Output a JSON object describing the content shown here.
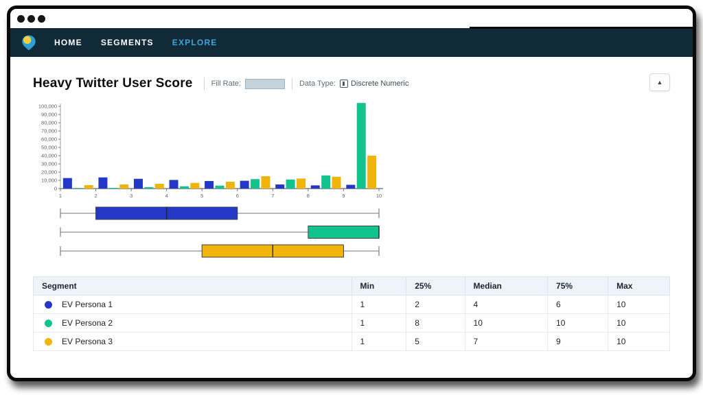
{
  "window": {
    "control_dot_count": 3
  },
  "navbar": {
    "items": [
      {
        "label": "HOME",
        "active": false
      },
      {
        "label": "SEGMENTS",
        "active": false
      },
      {
        "label": "EXPLORE",
        "active": true
      }
    ]
  },
  "panel": {
    "title": "Heavy Twitter User Score",
    "fill_rate_label": "Fill Rate:",
    "fill_rate_value": "",
    "data_type_label": "Data Type:",
    "data_type_value": "Discrete Numeric",
    "collapse_icon_glyph": "▲"
  },
  "colors": {
    "navbar_bg": "#112a37",
    "nav_active": "#3fa5dc",
    "series_blue": "#2438c8",
    "series_green": "#13c38d",
    "series_yellow": "#f0b40a",
    "table_header_bg": "#eef4fa",
    "logo_yellow": "#f6cf3a",
    "logo_blue": "#2d9ed6",
    "axis_gray": "#9aa0a6"
  },
  "chart_data": [
    {
      "type": "bar",
      "title": "Heavy Twitter User Score — histogram of segment counts per score bin",
      "xlabel": "",
      "ylabel": "",
      "xlim": [
        1,
        10
      ],
      "ylim": [
        0,
        100000
      ],
      "grid": false,
      "legend_position": "none",
      "xticks": [
        "1",
        "2",
        "3",
        "4",
        "5",
        "6",
        "7",
        "8",
        "9",
        "10"
      ],
      "yticks": [
        "0",
        "10,000",
        "20,000",
        "30,000",
        "40,000",
        "50,000",
        "60,000",
        "70,000",
        "80,000",
        "90,000",
        "100,000"
      ],
      "bin_starts": [
        1,
        2,
        3,
        4,
        5,
        6,
        7,
        8,
        9
      ],
      "series": [
        {
          "name": "EV Persona 1",
          "color": "#2438c8",
          "values": [
            12800,
            13600,
            11900,
            10500,
            9200,
            9500,
            5000,
            3900,
            4600
          ]
        },
        {
          "name": "EV Persona 2",
          "color": "#13c38d",
          "values": [
            600,
            900,
            1700,
            2800,
            3600,
            11500,
            11000,
            16000,
            104000
          ]
        },
        {
          "name": "EV Persona 3",
          "color": "#f0b40a",
          "values": [
            4200,
            5000,
            5800,
            6900,
            8300,
            15000,
            12200,
            14400,
            40000
          ]
        }
      ]
    },
    {
      "type": "boxplot",
      "orientation": "horizontal",
      "xlim": [
        1,
        10
      ],
      "series": [
        {
          "name": "EV Persona 1",
          "color": "#2438c8",
          "min": 1,
          "q1": 2,
          "median": 4,
          "q3": 6,
          "max": 10
        },
        {
          "name": "EV Persona 2",
          "color": "#13c38d",
          "min": 1,
          "q1": 8,
          "median": 10,
          "q3": 10,
          "max": 10
        },
        {
          "name": "EV Persona 3",
          "color": "#f0b40a",
          "min": 1,
          "q1": 5,
          "median": 7,
          "q3": 9,
          "max": 10
        }
      ]
    }
  ],
  "table": {
    "columns": [
      "Segment",
      "Min",
      "25%",
      "Median",
      "75%",
      "Max"
    ],
    "rows": [
      {
        "segment": "EV Persona 1",
        "color": "#2438c8",
        "min": "1",
        "q1": "2",
        "median": "4",
        "q3": "6",
        "max": "10"
      },
      {
        "segment": "EV Persona 2",
        "color": "#13c38d",
        "min": "1",
        "q1": "8",
        "median": "10",
        "q3": "10",
        "max": "10"
      },
      {
        "segment": "EV Persona 3",
        "color": "#f0b40a",
        "min": "1",
        "q1": "5",
        "median": "7",
        "q3": "9",
        "max": "10"
      }
    ]
  }
}
